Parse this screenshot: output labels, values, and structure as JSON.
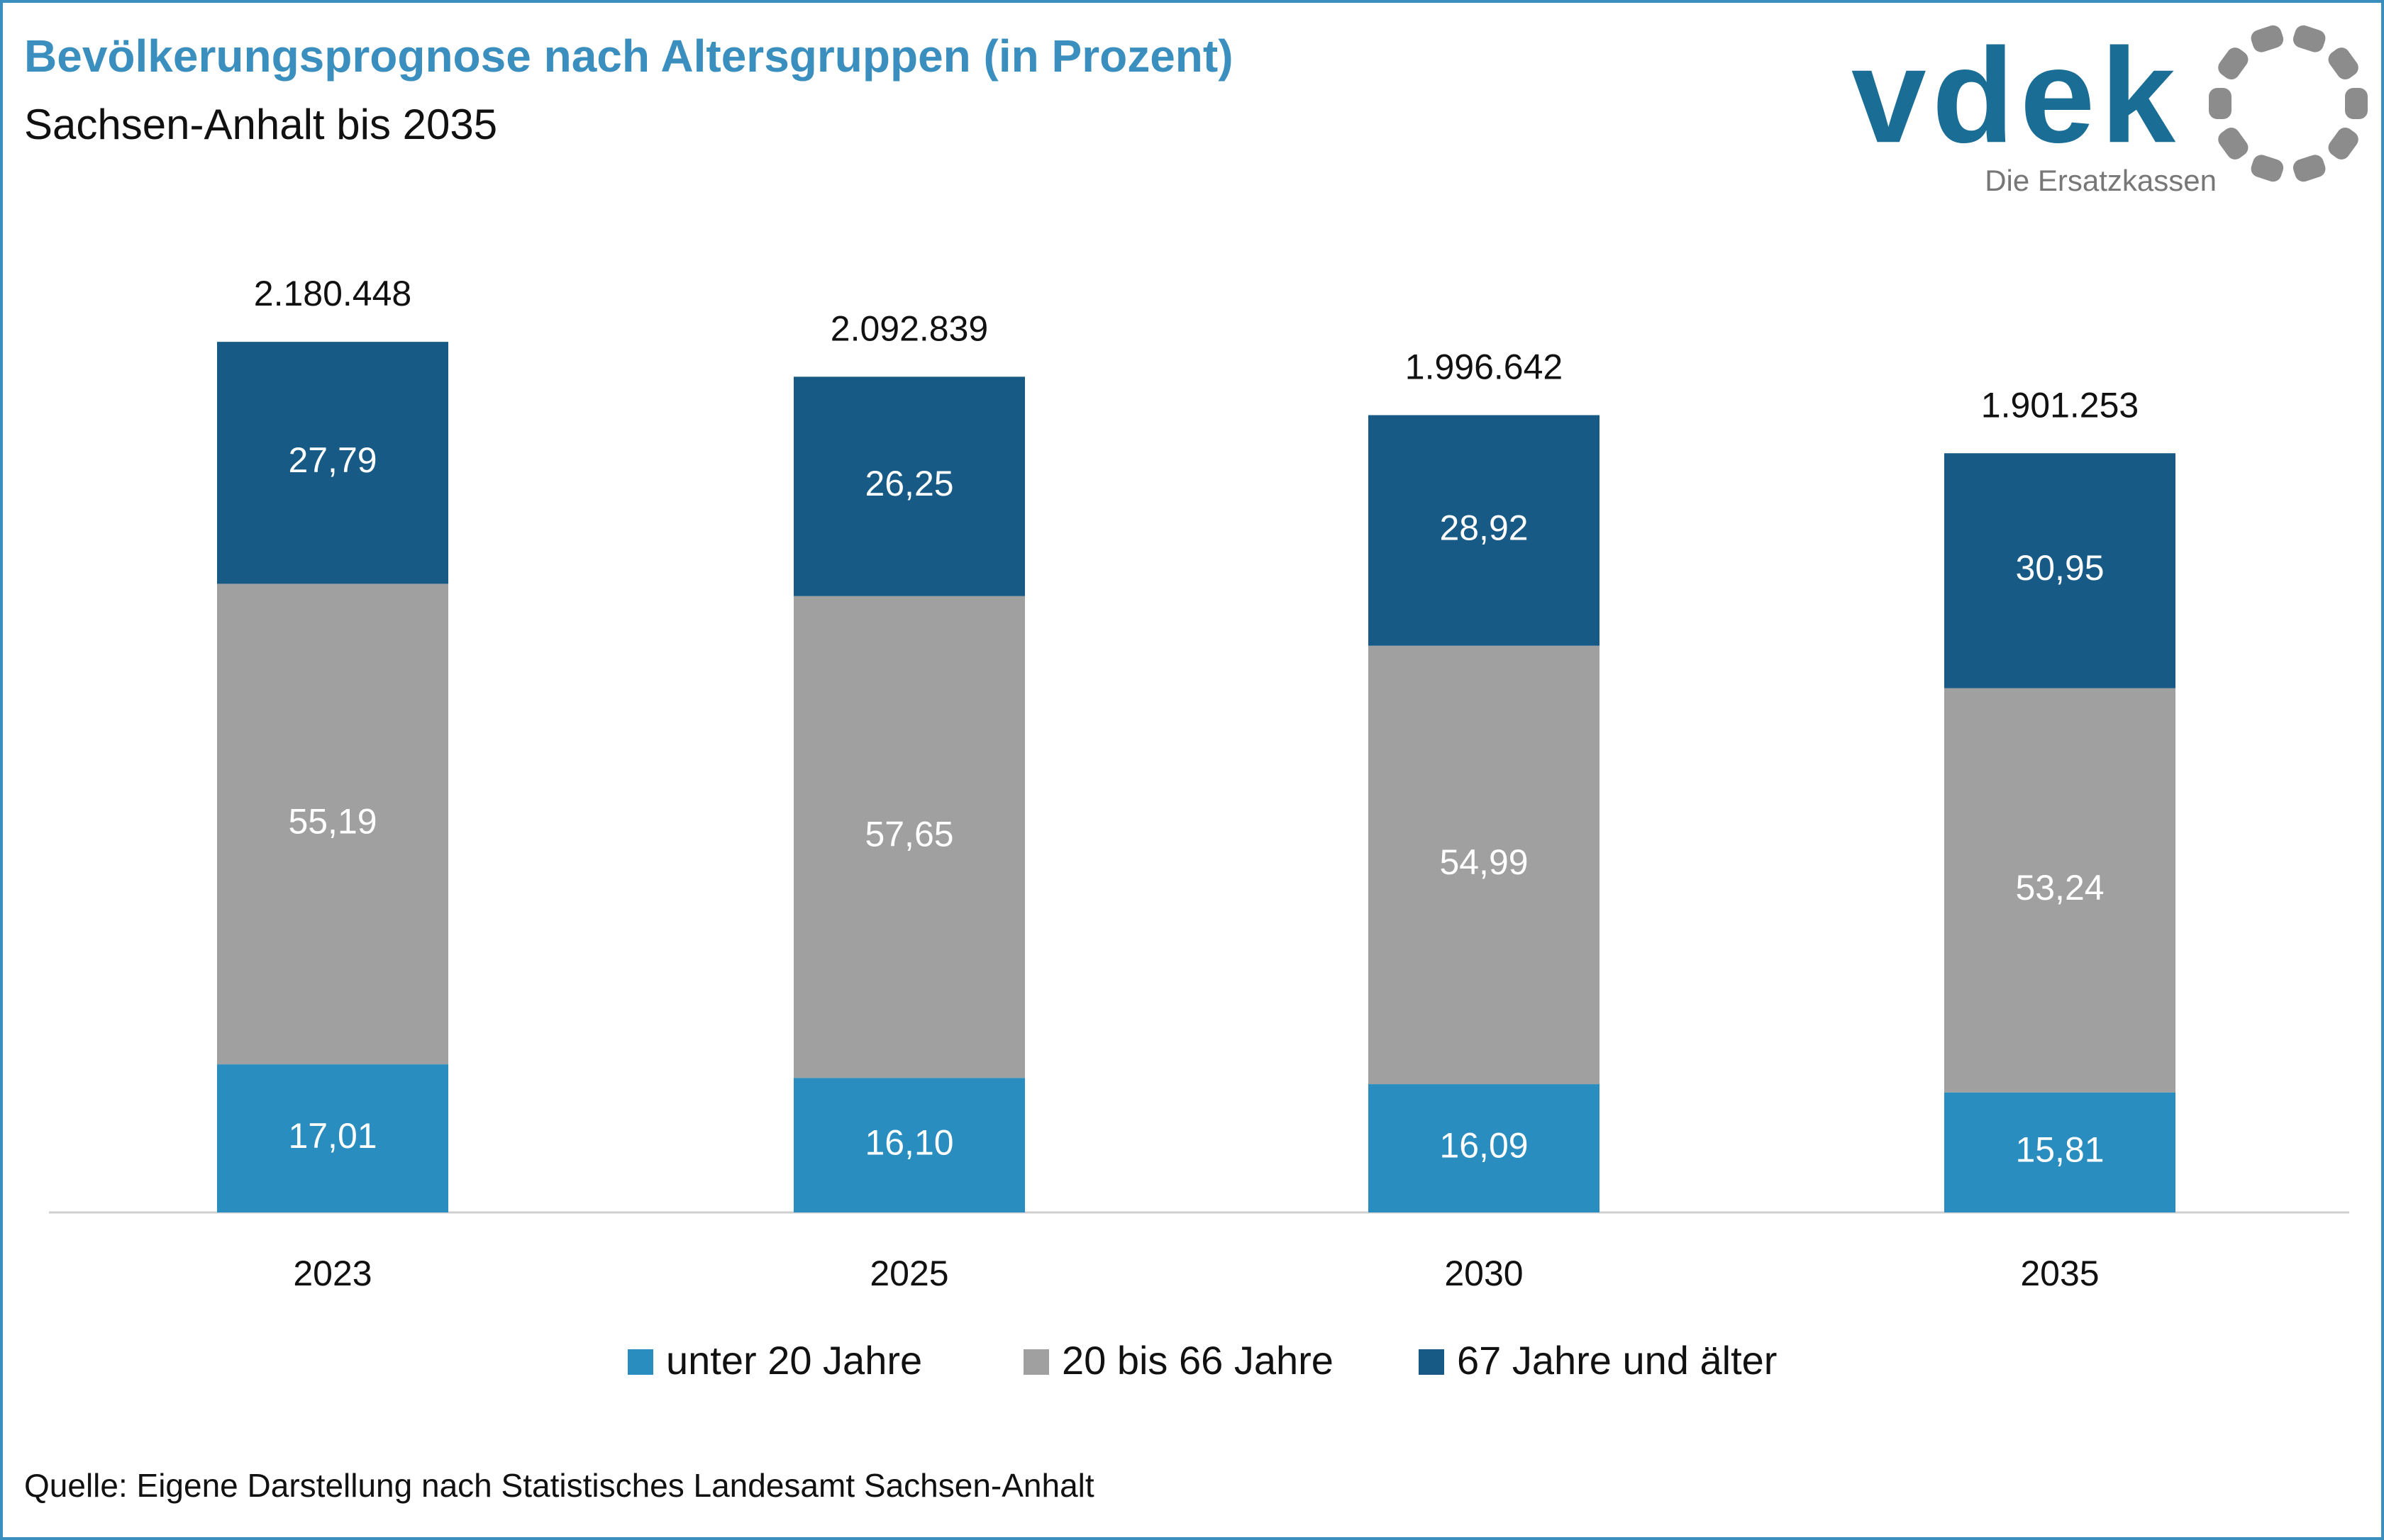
{
  "chart_data": {
    "type": "stacked_bar",
    "title": "Bevölkerungsprognose nach Altersgruppen (in Prozent)",
    "subtitle": "Sachsen-Anhalt bis 2035",
    "categories": [
      "2023",
      "2025",
      "2030",
      "2035"
    ],
    "series": [
      {
        "name": "unter 20 Jahre",
        "color": "#2a8dc0",
        "values": [
          17.01,
          16.1,
          16.09,
          15.81
        ],
        "value_labels": [
          "17,01",
          "16,10",
          "16,09",
          "15,81"
        ]
      },
      {
        "name": "20 bis 66 Jahre",
        "color": "#a0a0a0",
        "values": [
          55.19,
          57.65,
          54.99,
          53.24
        ],
        "value_labels": [
          "55,19",
          "57,65",
          "54,99",
          "53,24"
        ]
      },
      {
        "name": "67 Jahre und älter",
        "color": "#175a85",
        "values": [
          27.79,
          26.25,
          28.92,
          30.95
        ],
        "value_labels": [
          "27,79",
          "26,25",
          "28,92",
          "30,95"
        ]
      }
    ],
    "totals": {
      "values": [
        2180448,
        2092839,
        1996642,
        1901253
      ],
      "value_labels": [
        "2.180.448",
        "2.092.839",
        "1.996.642",
        "1.901.253"
      ]
    },
    "source": "Quelle: Eigene Darstellung nach Statistisches Landesamt Sachsen-Anhalt"
  },
  "logo": {
    "name": "vdek",
    "tagline": "Die Ersatzkassen"
  }
}
